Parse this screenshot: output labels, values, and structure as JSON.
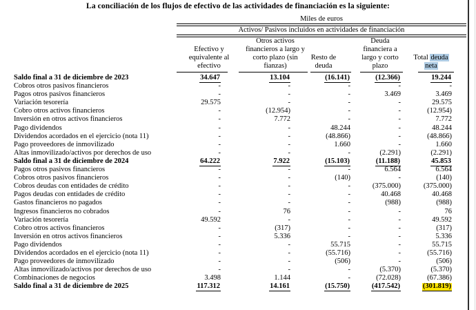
{
  "title": "La conciliación de los flujos de efectivo de las actividades de financiación es la siguiente:",
  "table": {
    "unit_header": "Miles de euros",
    "group_header": "Activos/ Pasivos incluidos en actividades de financiación",
    "col_headers": {
      "c1": "Efectivo y\nequivalente al\nefectivo",
      "c2": "Otros activos\nfinancieros a largo y\ncorto plazo (sin\nfianzas)",
      "c3": "Resto de\ndeuda",
      "c4": "Deuda\nfinanciera a\nlargo y corto\nplazo",
      "c5": {
        "plain": "Total",
        "hl_top": "deuda",
        "hl_bottom": "neta"
      }
    },
    "rows": [
      {
        "label": "Saldo final a 31 de diciembre de 2023",
        "values": [
          "34.647",
          "13.104",
          "(16.141)",
          "(12.366)",
          "19.244"
        ],
        "style": "total"
      },
      {
        "label": "Cobros otros pasivos financieros",
        "values": [
          "-",
          "-",
          "-",
          "-",
          "-"
        ]
      },
      {
        "label": "Pagos otros pasivos financieros",
        "values": [
          "-",
          "-",
          "-",
          "3.469",
          "3.469"
        ]
      },
      {
        "label": "Variación tesorería",
        "values": [
          "29.575",
          "-",
          "-",
          "-",
          "29.575"
        ]
      },
      {
        "label": "Cobro otros activos financieros",
        "values": [
          "-",
          "(12.954)",
          "-",
          "-",
          "(12.954)"
        ]
      },
      {
        "label": "Inversión en otros activos financieros",
        "values": [
          "-",
          "7.772",
          "-",
          "-",
          "7.772"
        ]
      },
      {
        "label": "Pago dividendos",
        "values": [
          "-",
          "-",
          "48.244",
          "-",
          "48.244"
        ]
      },
      {
        "label": "Dividendos acordados en el ejercicio (nota 11)",
        "values": [
          "-",
          "-",
          "(48.866)",
          "-",
          "(48.866)"
        ]
      },
      {
        "label": "Pago proveedores de inmovilizado",
        "values": [
          "-",
          "-",
          "1.660",
          "-",
          "1.660"
        ]
      },
      {
        "label": "Altas inmovilizado/activos por derechos de uso",
        "values": [
          "-",
          "-",
          "-",
          "(2.291)",
          "(2.291)"
        ]
      },
      {
        "label": "Saldo final a 31 de diciembre de 2024",
        "values": [
          "64.222",
          "7.922",
          "(15.103)",
          "(11.188)",
          "45.853"
        ],
        "style": "total"
      },
      {
        "label": "Pagos otros pasivos financieros",
        "values": [
          "-",
          "-",
          "-",
          "6.564",
          "6.564"
        ]
      },
      {
        "label": "Cobros otros pasivos financieros",
        "values": [
          "-",
          "-",
          "(140)",
          "-",
          "(140)"
        ]
      },
      {
        "label": "Cobros deudas con entidades de crédito",
        "values": [
          "-",
          "-",
          "-",
          "(375.000)",
          "(375.000)"
        ]
      },
      {
        "label": "Pagos deudas con entidades de crédito",
        "values": [
          "-",
          "-",
          "-",
          "40.468",
          "40.468"
        ]
      },
      {
        "label": "Gastos financieros no pagados",
        "values": [
          "-",
          "-",
          "-",
          "(988)",
          "(988)"
        ]
      },
      {
        "label": "Ingresos financieros no cobrados",
        "values": [
          "-",
          "76",
          "-",
          "-",
          "76"
        ]
      },
      {
        "label": "Variación tesorería",
        "values": [
          "49.592",
          "-",
          "-",
          "-",
          "49.592"
        ]
      },
      {
        "label": "Cobro otros activos financieros",
        "values": [
          "-",
          "(317)",
          "-",
          "-",
          "(317)"
        ]
      },
      {
        "label": "Inversión en otros activos financieros",
        "values": [
          "-",
          "5.336",
          "-",
          "-",
          "5.336"
        ]
      },
      {
        "label": "Pago dividendos",
        "values": [
          "-",
          "-",
          "55.715",
          "-",
          "55.715"
        ]
      },
      {
        "label": "Dividendos acordados en el ejercicio (nota 11)",
        "values": [
          "-",
          "-",
          "(55.716)",
          "-",
          "(55.716)"
        ]
      },
      {
        "label": "Pago proveedores de inmovilizado",
        "values": [
          "-",
          "-",
          "(506)",
          "-",
          "(506)"
        ]
      },
      {
        "label": "Altas inmovilizado/activos por derechos de uso",
        "values": [
          "-",
          "-",
          "-",
          "(5.370)",
          "(5.370)"
        ]
      },
      {
        "label": "Combinaciones de negocios",
        "values": [
          "3.498",
          "1.144",
          "-",
          "(72.028)",
          "(67.386)"
        ]
      },
      {
        "label": "Saldo final a 31 de diciembre de 2025",
        "values": [
          "117.312",
          "14.161",
          "(15.750)",
          "(417.542)",
          "(301.819)"
        ],
        "style": "total",
        "highlight_last": true
      }
    ]
  },
  "colors": {
    "highlight_blue": "#aecbe3",
    "highlight_yellow": "#ffe400"
  }
}
